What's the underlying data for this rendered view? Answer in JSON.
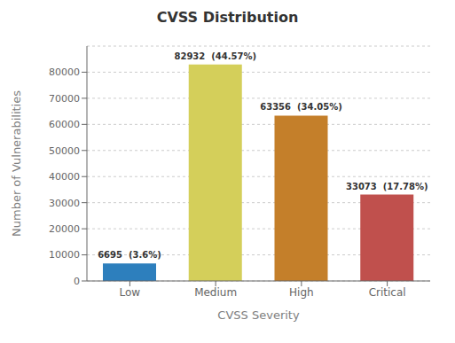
{
  "chart_data": {
    "type": "bar",
    "title": "CVSS Distribution",
    "x_label": "CVSS Severity",
    "y_label": "Number of Vulnerabilities",
    "categories": [
      "Low",
      "Medium",
      "High",
      "Critical"
    ],
    "values": [
      6695,
      82932,
      63356,
      33073
    ],
    "value_labels": [
      "6695  (3.6%)",
      "82932  (44.57%)",
      "63356  (34.05%)",
      "33073  (17.78%)"
    ],
    "colors": [
      "#2d7fbd",
      "#d4cf5a",
      "#c47f2a",
      "#c0504d"
    ],
    "ylim": [
      0,
      90000
    ],
    "yticks": [
      0,
      10000,
      20000,
      30000,
      40000,
      50000,
      60000,
      70000,
      80000
    ],
    "grid": true,
    "data_labels": true
  }
}
